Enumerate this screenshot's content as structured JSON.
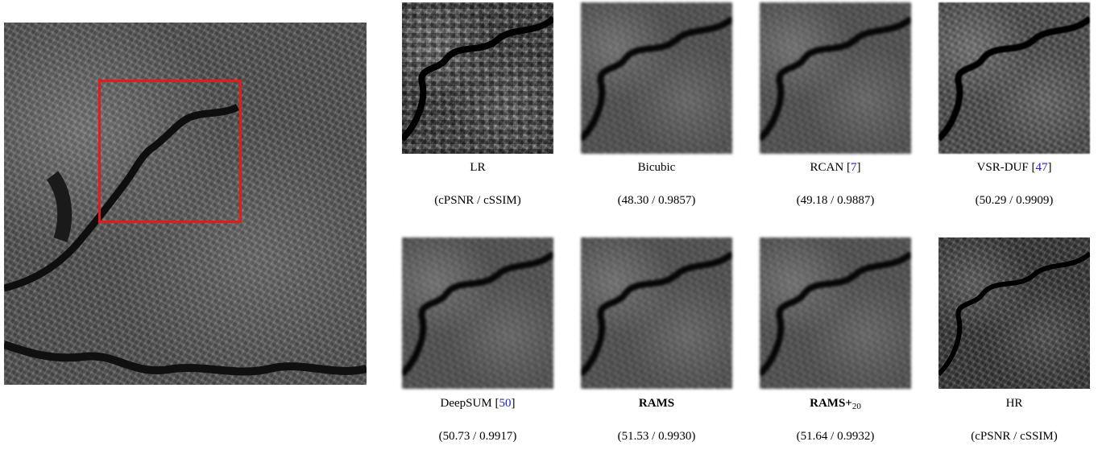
{
  "panels": [
    {
      "name": "LR",
      "cite": "",
      "metrics": "(cPSNR / cSSIM)"
    },
    {
      "name": "Bicubic",
      "cite": "",
      "metrics": "(48.30 / 0.9857)"
    },
    {
      "name": "RCAN",
      "cite": "7",
      "metrics": "(49.18 / 0.9887)"
    },
    {
      "name": "VSR-DUF",
      "cite": "47",
      "metrics": "(50.29 / 0.9909)"
    },
    {
      "name": "DeepSUM",
      "cite": "50",
      "metrics": "(50.73 / 0.9917)"
    },
    {
      "name": "RAMS",
      "cite": "",
      "metrics": "(51.53 / 0.9930)"
    },
    {
      "name": "RAMS+",
      "subscript": "20",
      "cite": "",
      "metrics": "(51.64 / 0.9932)"
    },
    {
      "name": "HR",
      "cite": "",
      "metrics": "(cPSNR / cSSIM)"
    }
  ],
  "colors": {
    "roi_box": "#e8191b",
    "citation": "#1a21d6"
  }
}
